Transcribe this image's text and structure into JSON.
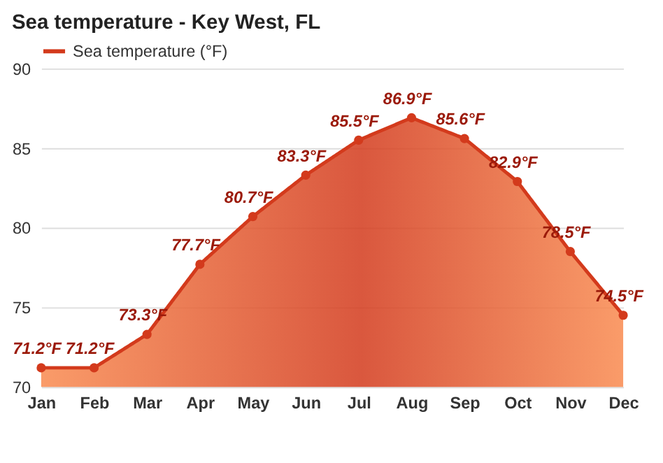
{
  "chart_data": {
    "type": "area",
    "title": "Sea temperature - Key West, FL",
    "categories": [
      "Jan",
      "Feb",
      "Mar",
      "Apr",
      "May",
      "Jun",
      "Jul",
      "Aug",
      "Sep",
      "Oct",
      "Nov",
      "Dec"
    ],
    "series": [
      {
        "name": "Sea temperature (°F)",
        "color": "#d33a1c",
        "values": [
          71.2,
          71.2,
          73.3,
          77.7,
          80.7,
          83.3,
          85.5,
          86.9,
          85.6,
          82.9,
          78.5,
          74.5
        ],
        "value_labels": [
          "71.2°F",
          "71.2°F",
          "73.3°F",
          "77.7°F",
          "80.7°F",
          "83.3°F",
          "85.5°F",
          "86.9°F",
          "85.6°F",
          "82.9°F",
          "78.5°F",
          "74.5°F"
        ]
      }
    ],
    "ylim": [
      70,
      90
    ],
    "yticks": [
      70,
      75,
      80,
      85,
      90
    ],
    "grid": "y",
    "legend": "top left",
    "marker": "circle",
    "line_style": "solid"
  }
}
